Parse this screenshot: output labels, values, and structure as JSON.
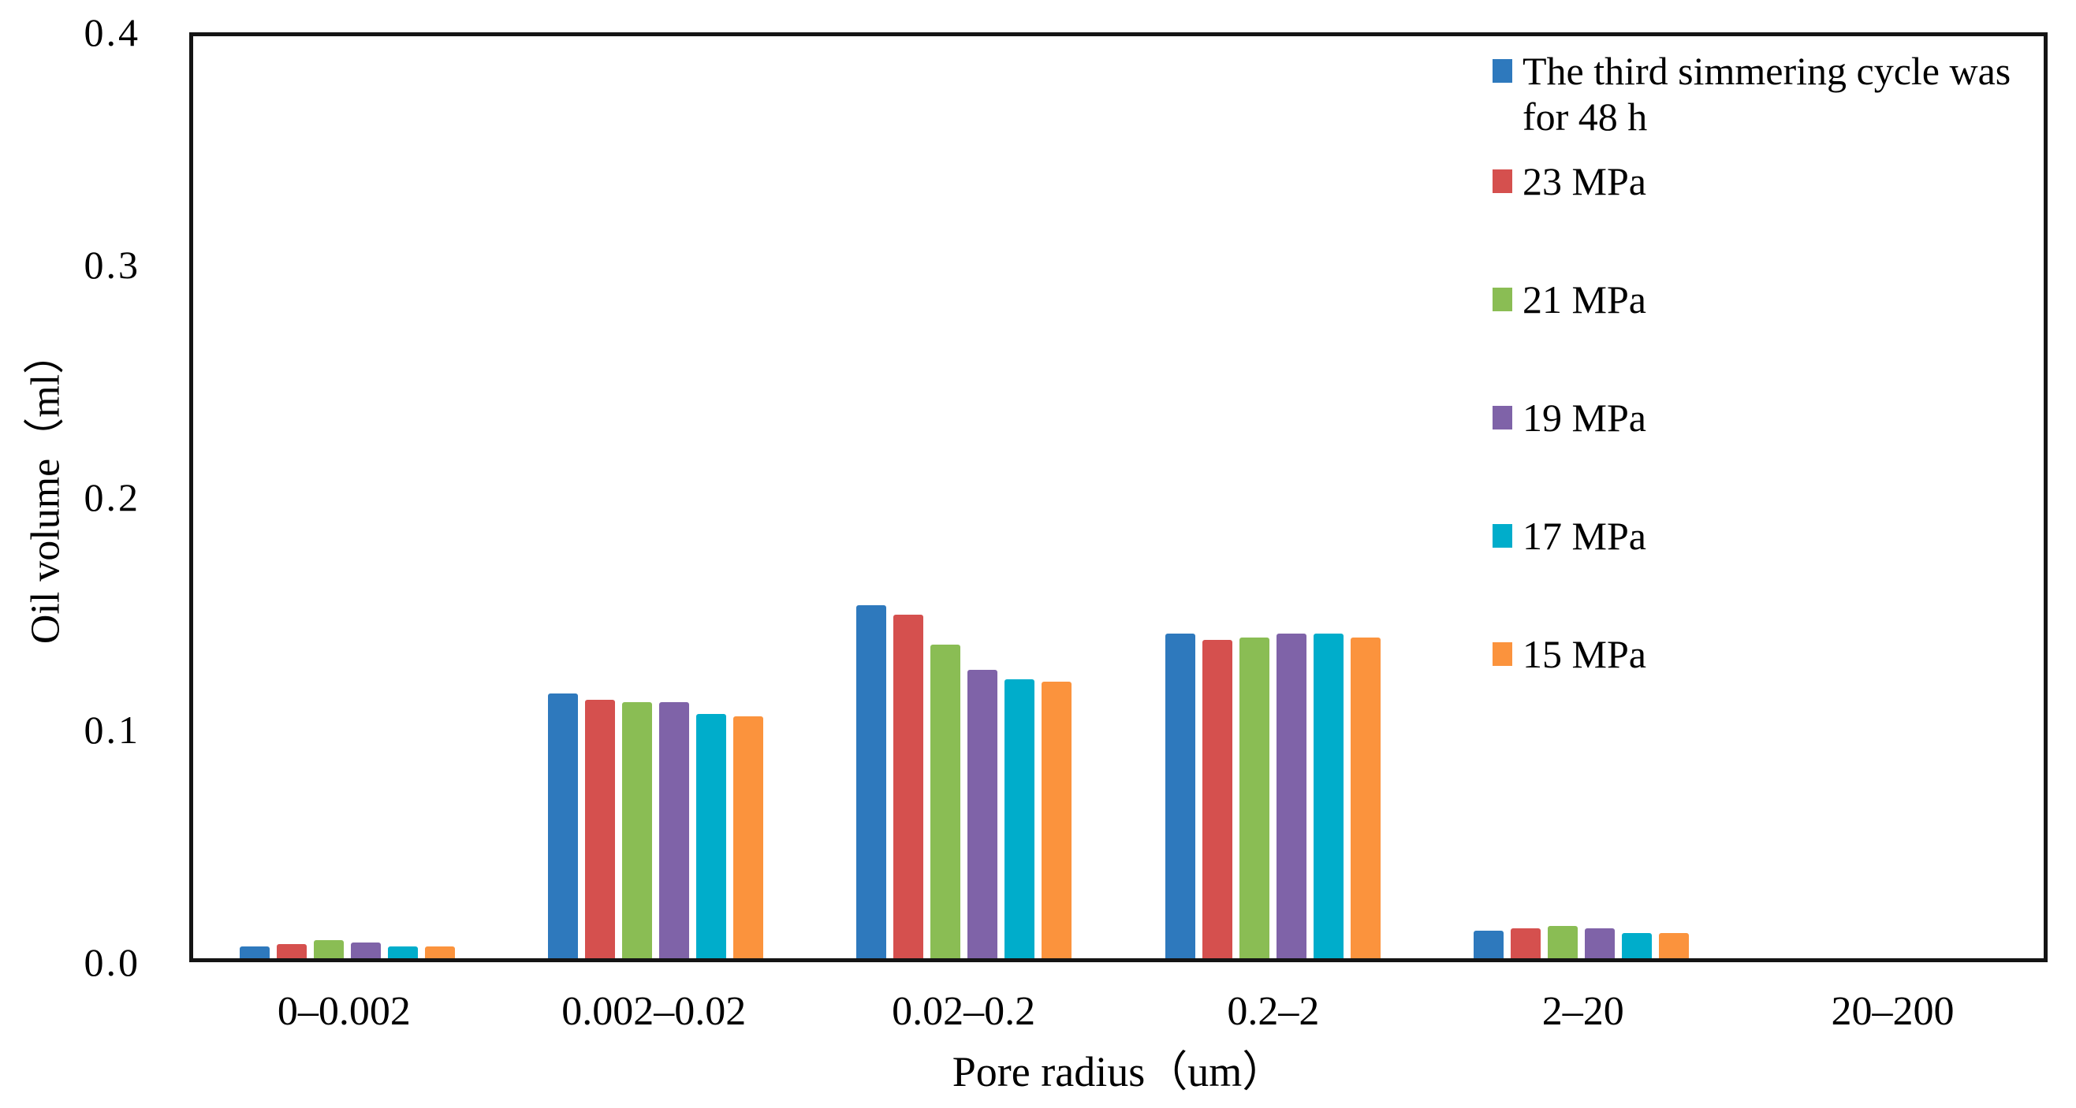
{
  "chart_data": {
    "type": "bar",
    "title": "",
    "xlabel": "Pore radius（um）",
    "ylabel": "Oil volume（ml）",
    "categories": [
      "0–0.002",
      "0.002–0.02",
      "0.02–0.2",
      "0.2–2",
      "2–20",
      "20–200"
    ],
    "y_ticks": [
      "0.0",
      "0.1",
      "0.2",
      "0.3",
      "0.4"
    ],
    "ylim": [
      0,
      0.4
    ],
    "grid": false,
    "legend_position": "inside-top-right",
    "axis_color": "#141414",
    "series": [
      {
        "name": "The third simmering cycle was for 48 h",
        "color": "#2E79BD",
        "values": [
          0.005,
          0.115,
          0.153,
          0.141,
          0.012,
          0
        ]
      },
      {
        "name": "23 MPa",
        "color": "#D5504E",
        "values": [
          0.006,
          0.112,
          0.149,
          0.138,
          0.013,
          0
        ]
      },
      {
        "name": "21 MPa",
        "color": "#8ABD54",
        "values": [
          0.008,
          0.111,
          0.136,
          0.139,
          0.014,
          0
        ]
      },
      {
        "name": "19 MPa",
        "color": "#7F63A8",
        "values": [
          0.007,
          0.111,
          0.125,
          0.141,
          0.013,
          0
        ]
      },
      {
        "name": "17 MPa",
        "color": "#00ADCB",
        "values": [
          0.005,
          0.106,
          0.121,
          0.141,
          0.011,
          0
        ]
      },
      {
        "name": "15 MPa",
        "color": "#FB933D",
        "values": [
          0.005,
          0.105,
          0.12,
          0.139,
          0.011,
          0
        ]
      }
    ]
  }
}
